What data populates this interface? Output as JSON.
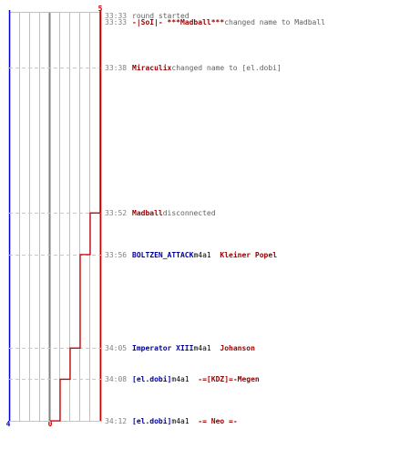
{
  "chart_data": {
    "type": "line",
    "left_axis": {
      "top_label": "",
      "bottom_label": "4",
      "color": "#0000cc"
    },
    "right_axis": {
      "top_label": "5",
      "bottom_label": "0",
      "color": "#cc0000"
    },
    "line_color": "#cc0000",
    "grid_color": "#c0c0c0",
    "center_line_color": "#808080",
    "dash_color": "#c8c8c8",
    "time_label_color": "#808080",
    "log_text_color": "#606060",
    "blue_team_color": "#000099",
    "red_team_color": "#990000",
    "events": [
      {
        "t": 0,
        "time": "33:33",
        "level": 5,
        "parts": [
          {
            "text": "round started",
            "style": "plain"
          }
        ]
      },
      {
        "t": 0,
        "time": "33:33",
        "level": 5,
        "parts": [
          {
            "text": "-|SoI|- ***Madball***",
            "style": "red"
          },
          {
            "text": " changed name to Madball",
            "style": "plain"
          }
        ]
      },
      {
        "t": 5,
        "time": "33:38",
        "level": 5,
        "parts": [
          {
            "text": "Miraculix",
            "style": "red"
          },
          {
            "text": " changed name to [el.dobi]",
            "style": "plain"
          }
        ]
      },
      {
        "t": 19,
        "time": "33:52",
        "level": 4,
        "parts": [
          {
            "text": "Madball",
            "style": "red"
          },
          {
            "text": " disconnected",
            "style": "plain"
          }
        ]
      },
      {
        "t": 23,
        "time": "33:56",
        "level": 3,
        "parts": [
          {
            "text": "BOLTZEN_ATTACK",
            "style": "blue"
          },
          {
            "text": " m4a1 ",
            "style": "dark"
          },
          {
            "text": "Kleiner Popel",
            "style": "red"
          }
        ]
      },
      {
        "t": 32,
        "time": "34:05",
        "level": 2,
        "parts": [
          {
            "text": "Imperator XIII",
            "style": "blue"
          },
          {
            "text": " m4a1 ",
            "style": "dark"
          },
          {
            "text": "Johanson",
            "style": "red"
          }
        ]
      },
      {
        "t": 35,
        "time": "34:08",
        "level": 1,
        "parts": [
          {
            "text": "[el.dobi]",
            "style": "blue"
          },
          {
            "text": " m4a1 ",
            "style": "dark"
          },
          {
            "text": "-=[KDZ]=-Megen",
            "style": "red"
          }
        ]
      },
      {
        "t": 39,
        "time": "34:12",
        "level": 0,
        "parts": [
          {
            "text": "[el.dobi]",
            "style": "blue"
          },
          {
            "text": " m4a1 ",
            "style": "dark"
          },
          {
            "text": "-= Neo =-",
            "style": "red"
          }
        ]
      }
    ],
    "x_range": [
      0,
      5
    ],
    "t_range": [
      0,
      39
    ]
  }
}
